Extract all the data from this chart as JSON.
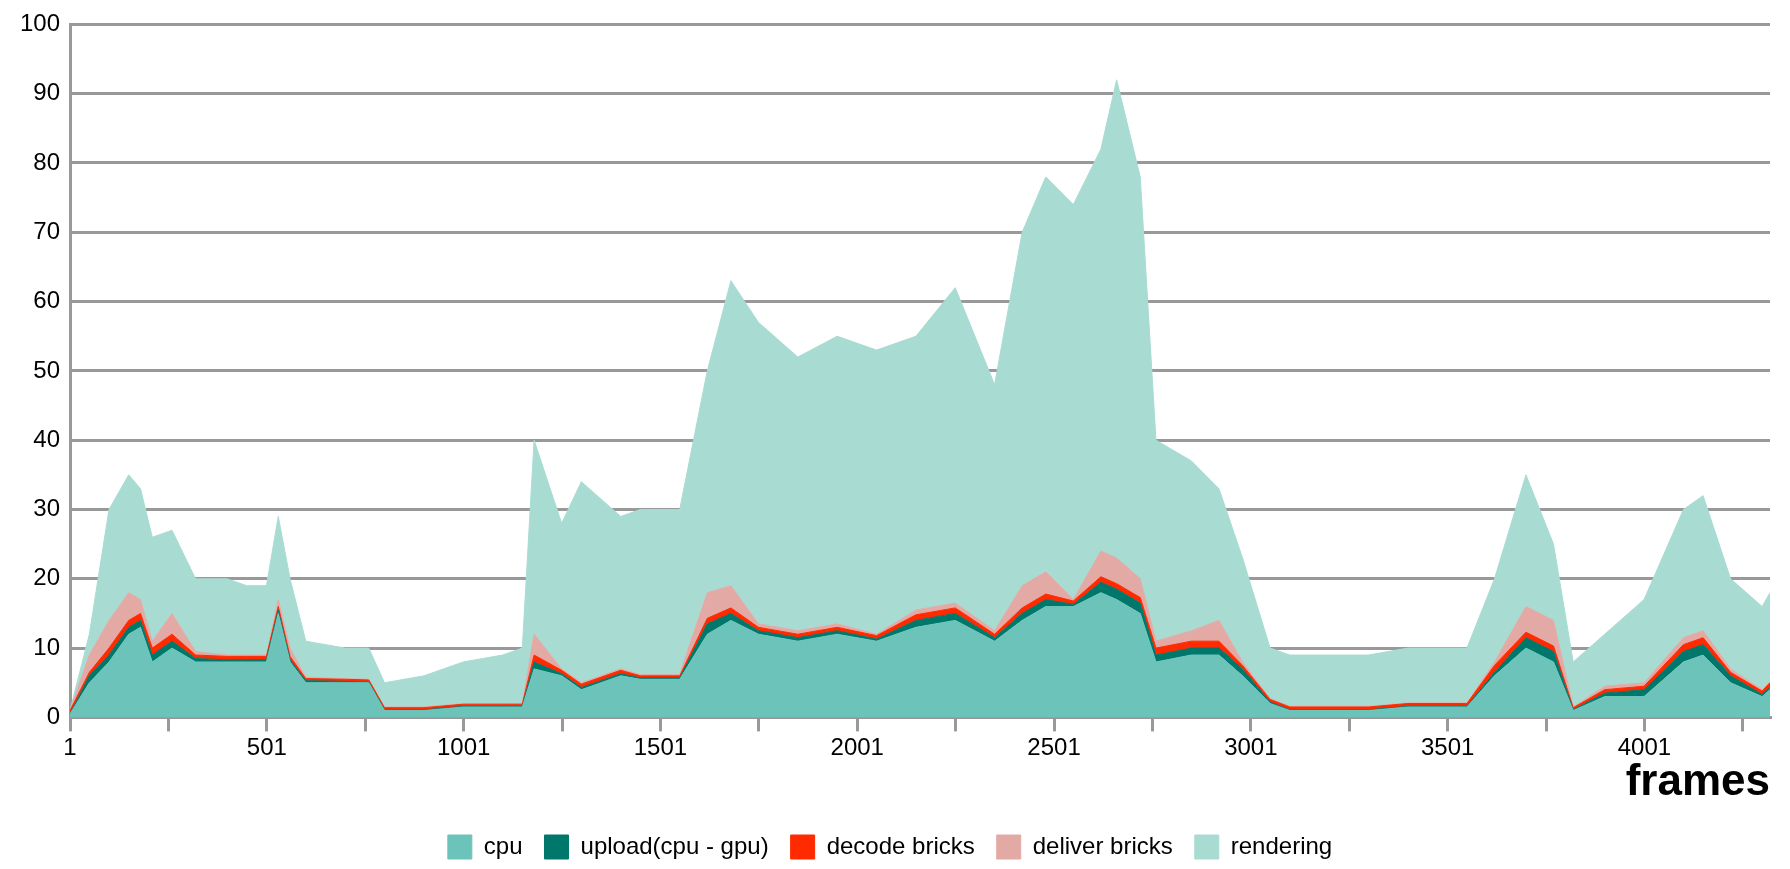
{
  "chart_data": {
    "type": "area",
    "stacked": true,
    "xlabel": "frames",
    "x": [
      1,
      50,
      100,
      150,
      180,
      210,
      260,
      320,
      400,
      450,
      500,
      530,
      560,
      600,
      700,
      760,
      800,
      900,
      1000,
      1100,
      1150,
      1180,
      1250,
      1300,
      1400,
      1450,
      1550,
      1620,
      1680,
      1750,
      1850,
      1950,
      2050,
      2150,
      2250,
      2350,
      2420,
      2480,
      2550,
      2620,
      2660,
      2720,
      2760,
      2850,
      2920,
      2980,
      3050,
      3100,
      3300,
      3400,
      3550,
      3620,
      3700,
      3770,
      3820,
      3900,
      4000,
      4100,
      4150,
      4220,
      4300,
      4320
    ],
    "xlim": [
      1,
      4320
    ],
    "xticks": [
      1,
      {
        "value": 251,
        "label": null
      },
      501,
      {
        "value": 751,
        "label": null
      },
      1001,
      {
        "value": 1251,
        "label": null
      },
      1501,
      {
        "value": 1751,
        "label": null
      },
      2001,
      {
        "value": 2251,
        "label": null
      },
      2501,
      {
        "value": 2751,
        "label": null
      },
      3001,
      {
        "value": 3251,
        "label": null
      },
      3501,
      {
        "value": 3751,
        "label": null
      },
      4001,
      {
        "value": 4251,
        "label": null
      }
    ],
    "ylim": [
      0,
      100
    ],
    "yticks": [
      0,
      10,
      20,
      30,
      40,
      50,
      60,
      70,
      80,
      90,
      100
    ],
    "grid": "y",
    "legend": "bottom",
    "series": [
      {
        "name": "cpu",
        "color": "#6cc3b9",
        "values": [
          0.5,
          5,
          8,
          12,
          13,
          8,
          10,
          8,
          8,
          8,
          8,
          15,
          8,
          5,
          5,
          5,
          1,
          1,
          1.5,
          1.5,
          1.5,
          7,
          6,
          4,
          6,
          5.5,
          5.5,
          12,
          14,
          12,
          11,
          12,
          11,
          13,
          14,
          11,
          14,
          16,
          16,
          18,
          17,
          15,
          8,
          9,
          9,
          6,
          2,
          1,
          1,
          1.5,
          1.5,
          6,
          10,
          8,
          1,
          3,
          3,
          8,
          9,
          5,
          3,
          4
        ]
      },
      {
        "name": "upload(cpu - gpu)",
        "color": "#00776b",
        "values": [
          0,
          1,
          1,
          1,
          1,
          1,
          1,
          0.5,
          0.3,
          0.3,
          0.3,
          0.5,
          0.3,
          0.3,
          0.2,
          0.1,
          0.1,
          0.1,
          0.1,
          0.1,
          0.1,
          1,
          0.3,
          0.3,
          0.3,
          0.2,
          0.2,
          1.5,
          1,
          0.5,
          0.5,
          0.5,
          0.3,
          1,
          1,
          0.5,
          1,
          1,
          0.3,
          1.5,
          1.5,
          1.5,
          1,
          1,
          1,
          1,
          0.2,
          0.1,
          0.1,
          0.1,
          0.1,
          0.5,
          1.5,
          1.5,
          0.1,
          0.5,
          1,
          1.5,
          1.5,
          1,
          0.3,
          0.3
        ]
      },
      {
        "name": "decode bricks",
        "color": "#ff2a00",
        "values": [
          0.5,
          0.5,
          1,
          1,
          1,
          1,
          1,
          0.5,
          0.5,
          0.5,
          0.5,
          0.5,
          0.5,
          0.3,
          0.3,
          0.3,
          0.3,
          0.3,
          0.3,
          0.3,
          0.3,
          1,
          0.5,
          0.5,
          0.5,
          0.3,
          0.3,
          0.8,
          0.8,
          0.5,
          0.5,
          0.5,
          0.5,
          0.8,
          0.8,
          0.5,
          0.8,
          0.8,
          0.5,
          0.8,
          0.8,
          0.8,
          1,
          1,
          1,
          0.5,
          0.4,
          0.4,
          0.4,
          0.4,
          0.4,
          1,
          0.8,
          0.8,
          0.3,
          0.5,
          0.5,
          1,
          1,
          0.5,
          0.5,
          0.7
        ]
      },
      {
        "name": "deliver bricks",
        "color": "#e3aaa5",
        "values": [
          0,
          2.5,
          4,
          4,
          2,
          1,
          3,
          0.5,
          0.2,
          0.2,
          0.2,
          1,
          1.2,
          0.2,
          0.1,
          0.1,
          0.1,
          0.1,
          0.1,
          0.1,
          0.1,
          3,
          0.2,
          0.2,
          0.2,
          0.2,
          0.2,
          3.7,
          3.2,
          0.5,
          0.5,
          0.5,
          0.2,
          0.7,
          0.7,
          0.5,
          3.2,
          3.2,
          0.2,
          3.7,
          3.7,
          2.7,
          1,
          1.5,
          3,
          0.5,
          0.1,
          0.1,
          0.1,
          0.1,
          0.1,
          0.5,
          3.7,
          3.7,
          0.1,
          0.5,
          0.5,
          1,
          1,
          0.5,
          0.2,
          0.2
        ]
      },
      {
        "name": "rendering",
        "color": "#a8dcd3",
        "values": [
          0,
          3,
          16,
          17,
          16,
          15,
          12,
          10.5,
          11,
          10,
          10,
          12,
          10,
          5.2,
          4.4,
          4.5,
          3.5,
          4.5,
          6,
          7,
          8,
          28,
          21,
          29,
          22,
          23.8,
          23.8,
          32,
          44,
          43.5,
          39.5,
          41.5,
          41,
          39.5,
          45.5,
          35.5,
          51,
          57,
          57,
          58,
          69,
          58,
          29,
          24.5,
          19,
          15,
          7.3,
          7.4,
          7.4,
          7.9,
          7.9,
          12,
          19,
          11,
          6.5,
          7.5,
          12,
          18.5,
          19.5,
          13,
          12,
          12.8
        ]
      }
    ]
  }
}
